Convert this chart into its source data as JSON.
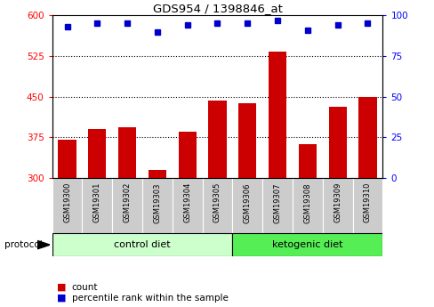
{
  "title": "GDS954 / 1398846_at",
  "samples": [
    "GSM19300",
    "GSM19301",
    "GSM19302",
    "GSM19303",
    "GSM19304",
    "GSM19305",
    "GSM19306",
    "GSM19307",
    "GSM19308",
    "GSM19309",
    "GSM19310"
  ],
  "counts": [
    370,
    390,
    393,
    315,
    385,
    443,
    438,
    533,
    362,
    432,
    450
  ],
  "percentile_ranks": [
    93,
    95,
    95,
    90,
    94,
    95,
    95,
    97,
    91,
    94,
    95
  ],
  "ylim_left": [
    300,
    600
  ],
  "ylim_right": [
    0,
    100
  ],
  "yticks_left": [
    300,
    375,
    450,
    525,
    600
  ],
  "yticks_right": [
    0,
    25,
    50,
    75,
    100
  ],
  "bar_color": "#cc0000",
  "dot_color": "#0000cc",
  "control_diet_indices": [
    0,
    1,
    2,
    3,
    4,
    5
  ],
  "ketogenic_diet_indices": [
    6,
    7,
    8,
    9,
    10
  ],
  "control_label": "control diet",
  "ketogenic_label": "ketogenic diet",
  "protocol_label": "protocol",
  "legend_count": "count",
  "legend_percentile": "percentile rank within the sample",
  "bg_color": "#ffffff",
  "plot_bg": "#ffffff",
  "control_bg": "#ccffcc",
  "ketogenic_bg": "#55ee55",
  "label_bg": "#cccccc"
}
